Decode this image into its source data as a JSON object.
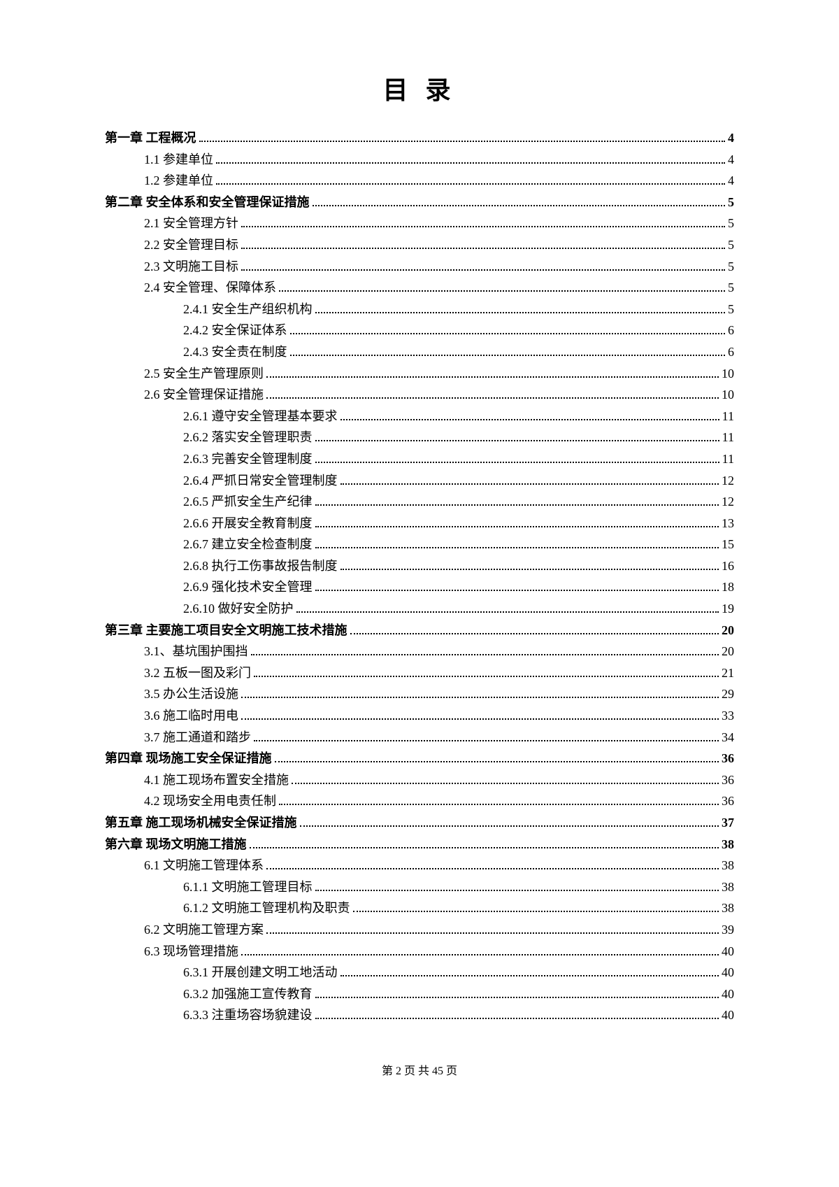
{
  "title": "目 录",
  "footer": "第 2 页 共 45 页",
  "toc": [
    {
      "level": 0,
      "label": "第一章 工程概况",
      "page": "4"
    },
    {
      "level": 1,
      "label": "1.1 参建单位",
      "page": "4"
    },
    {
      "level": 1,
      "label": "1.2 参建单位",
      "page": "4"
    },
    {
      "level": 0,
      "label": "第二章 安全体系和安全管理保证措施",
      "page": "5"
    },
    {
      "level": 1,
      "label": "2.1 安全管理方针",
      "page": "5"
    },
    {
      "level": 1,
      "label": "2.2 安全管理目标",
      "page": "5"
    },
    {
      "level": 1,
      "label": "2.3 文明施工目标",
      "page": "5"
    },
    {
      "level": 1,
      "label": "2.4 安全管理、保障体系",
      "page": "5"
    },
    {
      "level": 2,
      "label": "2.4.1 安全生产组织机构",
      "page": "5"
    },
    {
      "level": 2,
      "label": "2.4.2 安全保证体系",
      "page": "6"
    },
    {
      "level": 2,
      "label": "2.4.3 安全责在制度",
      "page": "6"
    },
    {
      "level": 1,
      "label": "2.5 安全生产管理原则",
      "page": "10"
    },
    {
      "level": 1,
      "label": "2.6 安全管理保证措施",
      "page": "10"
    },
    {
      "level": 2,
      "label": "2.6.1 遵守安全管理基本要求",
      "page": "11"
    },
    {
      "level": 2,
      "label": "2.6.2 落实安全管理职责",
      "page": "11"
    },
    {
      "level": 2,
      "label": "2.6.3 完善安全管理制度",
      "page": "11"
    },
    {
      "level": 2,
      "label": "2.6.4 严抓日常安全管理制度",
      "page": "12"
    },
    {
      "level": 2,
      "label": "2.6.5 严抓安全生产纪律",
      "page": "12"
    },
    {
      "level": 2,
      "label": "2.6.6 开展安全教育制度",
      "page": "13"
    },
    {
      "level": 2,
      "label": "2.6.7 建立安全检查制度",
      "page": "15"
    },
    {
      "level": 2,
      "label": "2.6.8 执行工伤事故报告制度",
      "page": "16"
    },
    {
      "level": 2,
      "label": "2.6.9 强化技术安全管理",
      "page": "18"
    },
    {
      "level": 2,
      "label": "2.6.10 做好安全防护",
      "page": "19"
    },
    {
      "level": 0,
      "label": "第三章 主要施工项目安全文明施工技术措施",
      "page": "20"
    },
    {
      "level": 1,
      "label": "3.1、基坑围护围挡",
      "page": "20"
    },
    {
      "level": 1,
      "label": "3.2 五板一图及彩门",
      "page": "21"
    },
    {
      "level": 1,
      "label": "3.5 办公生活设施",
      "page": "29"
    },
    {
      "level": 1,
      "label": "3.6 施工临时用电",
      "page": "33"
    },
    {
      "level": 1,
      "label": "3.7  施工通道和踏步",
      "page": "34"
    },
    {
      "level": 0,
      "label": "第四章 现场施工安全保证措施",
      "page": "36"
    },
    {
      "level": 1,
      "label": "4.1 施工现场布置安全措施",
      "page": "36"
    },
    {
      "level": 1,
      "label": "4.2 现场安全用电责任制",
      "page": "36"
    },
    {
      "level": 0,
      "label": "第五章 施工现场机械安全保证措施",
      "page": "37"
    },
    {
      "level": 0,
      "label": "第六章 现场文明施工措施",
      "page": "38"
    },
    {
      "level": 1,
      "label": "6.1 文明施工管理体系",
      "page": "38"
    },
    {
      "level": 2,
      "label": "6.1.1 文明施工管理目标",
      "page": "38"
    },
    {
      "level": 2,
      "label": "6.1.2 文明施工管理机构及职责",
      "page": "38"
    },
    {
      "level": 1,
      "label": "6.2 文明施工管理方案",
      "page": "39"
    },
    {
      "level": 1,
      "label": "6.3 现场管理措施",
      "page": "40"
    },
    {
      "level": 2,
      "label": "6.3.1 开展创建文明工地活动",
      "page": "40"
    },
    {
      "level": 2,
      "label": "6.3.2 加强施工宣传教育",
      "page": "40"
    },
    {
      "level": 2,
      "label": "6.3.3 注重场容场貌建设",
      "page": "40"
    }
  ]
}
